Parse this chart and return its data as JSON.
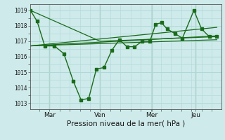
{
  "bg_color": "#ceeaea",
  "grid_color": "#b0d8d8",
  "line_color": "#1a6b1a",
  "marker_color": "#1a6b1a",
  "xlabel": "Pression niveau de la mer( hPa )",
  "yticks": [
    1013,
    1014,
    1015,
    1016,
    1017,
    1018,
    1019
  ],
  "ylim": [
    1012.6,
    1019.4
  ],
  "xlim": [
    0.0,
    1.0
  ],
  "xtick_labels": [
    "Mar",
    "Ven",
    "Mer",
    "Jeu"
  ],
  "xtick_positions": [
    0.1,
    0.365,
    0.635,
    0.865
  ],
  "line1_x": [
    0.0,
    0.035,
    0.075,
    0.125,
    0.175,
    0.225,
    0.265,
    0.305,
    0.345,
    0.385,
    0.425,
    0.465,
    0.505,
    0.545,
    0.585,
    0.625,
    0.655,
    0.685,
    0.715,
    0.755,
    0.795,
    0.855,
    0.895,
    0.935,
    0.975
  ],
  "line1_y": [
    1019.0,
    1018.3,
    1016.7,
    1016.7,
    1016.2,
    1014.4,
    1013.2,
    1013.3,
    1015.2,
    1015.3,
    1016.4,
    1017.1,
    1016.65,
    1016.65,
    1017.0,
    1017.0,
    1018.1,
    1018.2,
    1017.8,
    1017.5,
    1017.2,
    1019.0,
    1017.8,
    1017.3,
    1017.3
  ],
  "line2_x": [
    0.0,
    0.365,
    0.975
  ],
  "line2_y": [
    1019.0,
    1017.0,
    1017.3
  ],
  "line3_x": [
    0.0,
    0.975
  ],
  "line3_y": [
    1016.7,
    1017.9
  ],
  "line4_x": [
    0.0,
    0.975
  ],
  "line4_y": [
    1016.7,
    1017.35
  ],
  "line5_x": [
    0.0,
    0.975
  ],
  "line5_y": [
    1016.7,
    1017.1
  ],
  "vline_positions": [
    0.1,
    0.365,
    0.635,
    0.865
  ]
}
